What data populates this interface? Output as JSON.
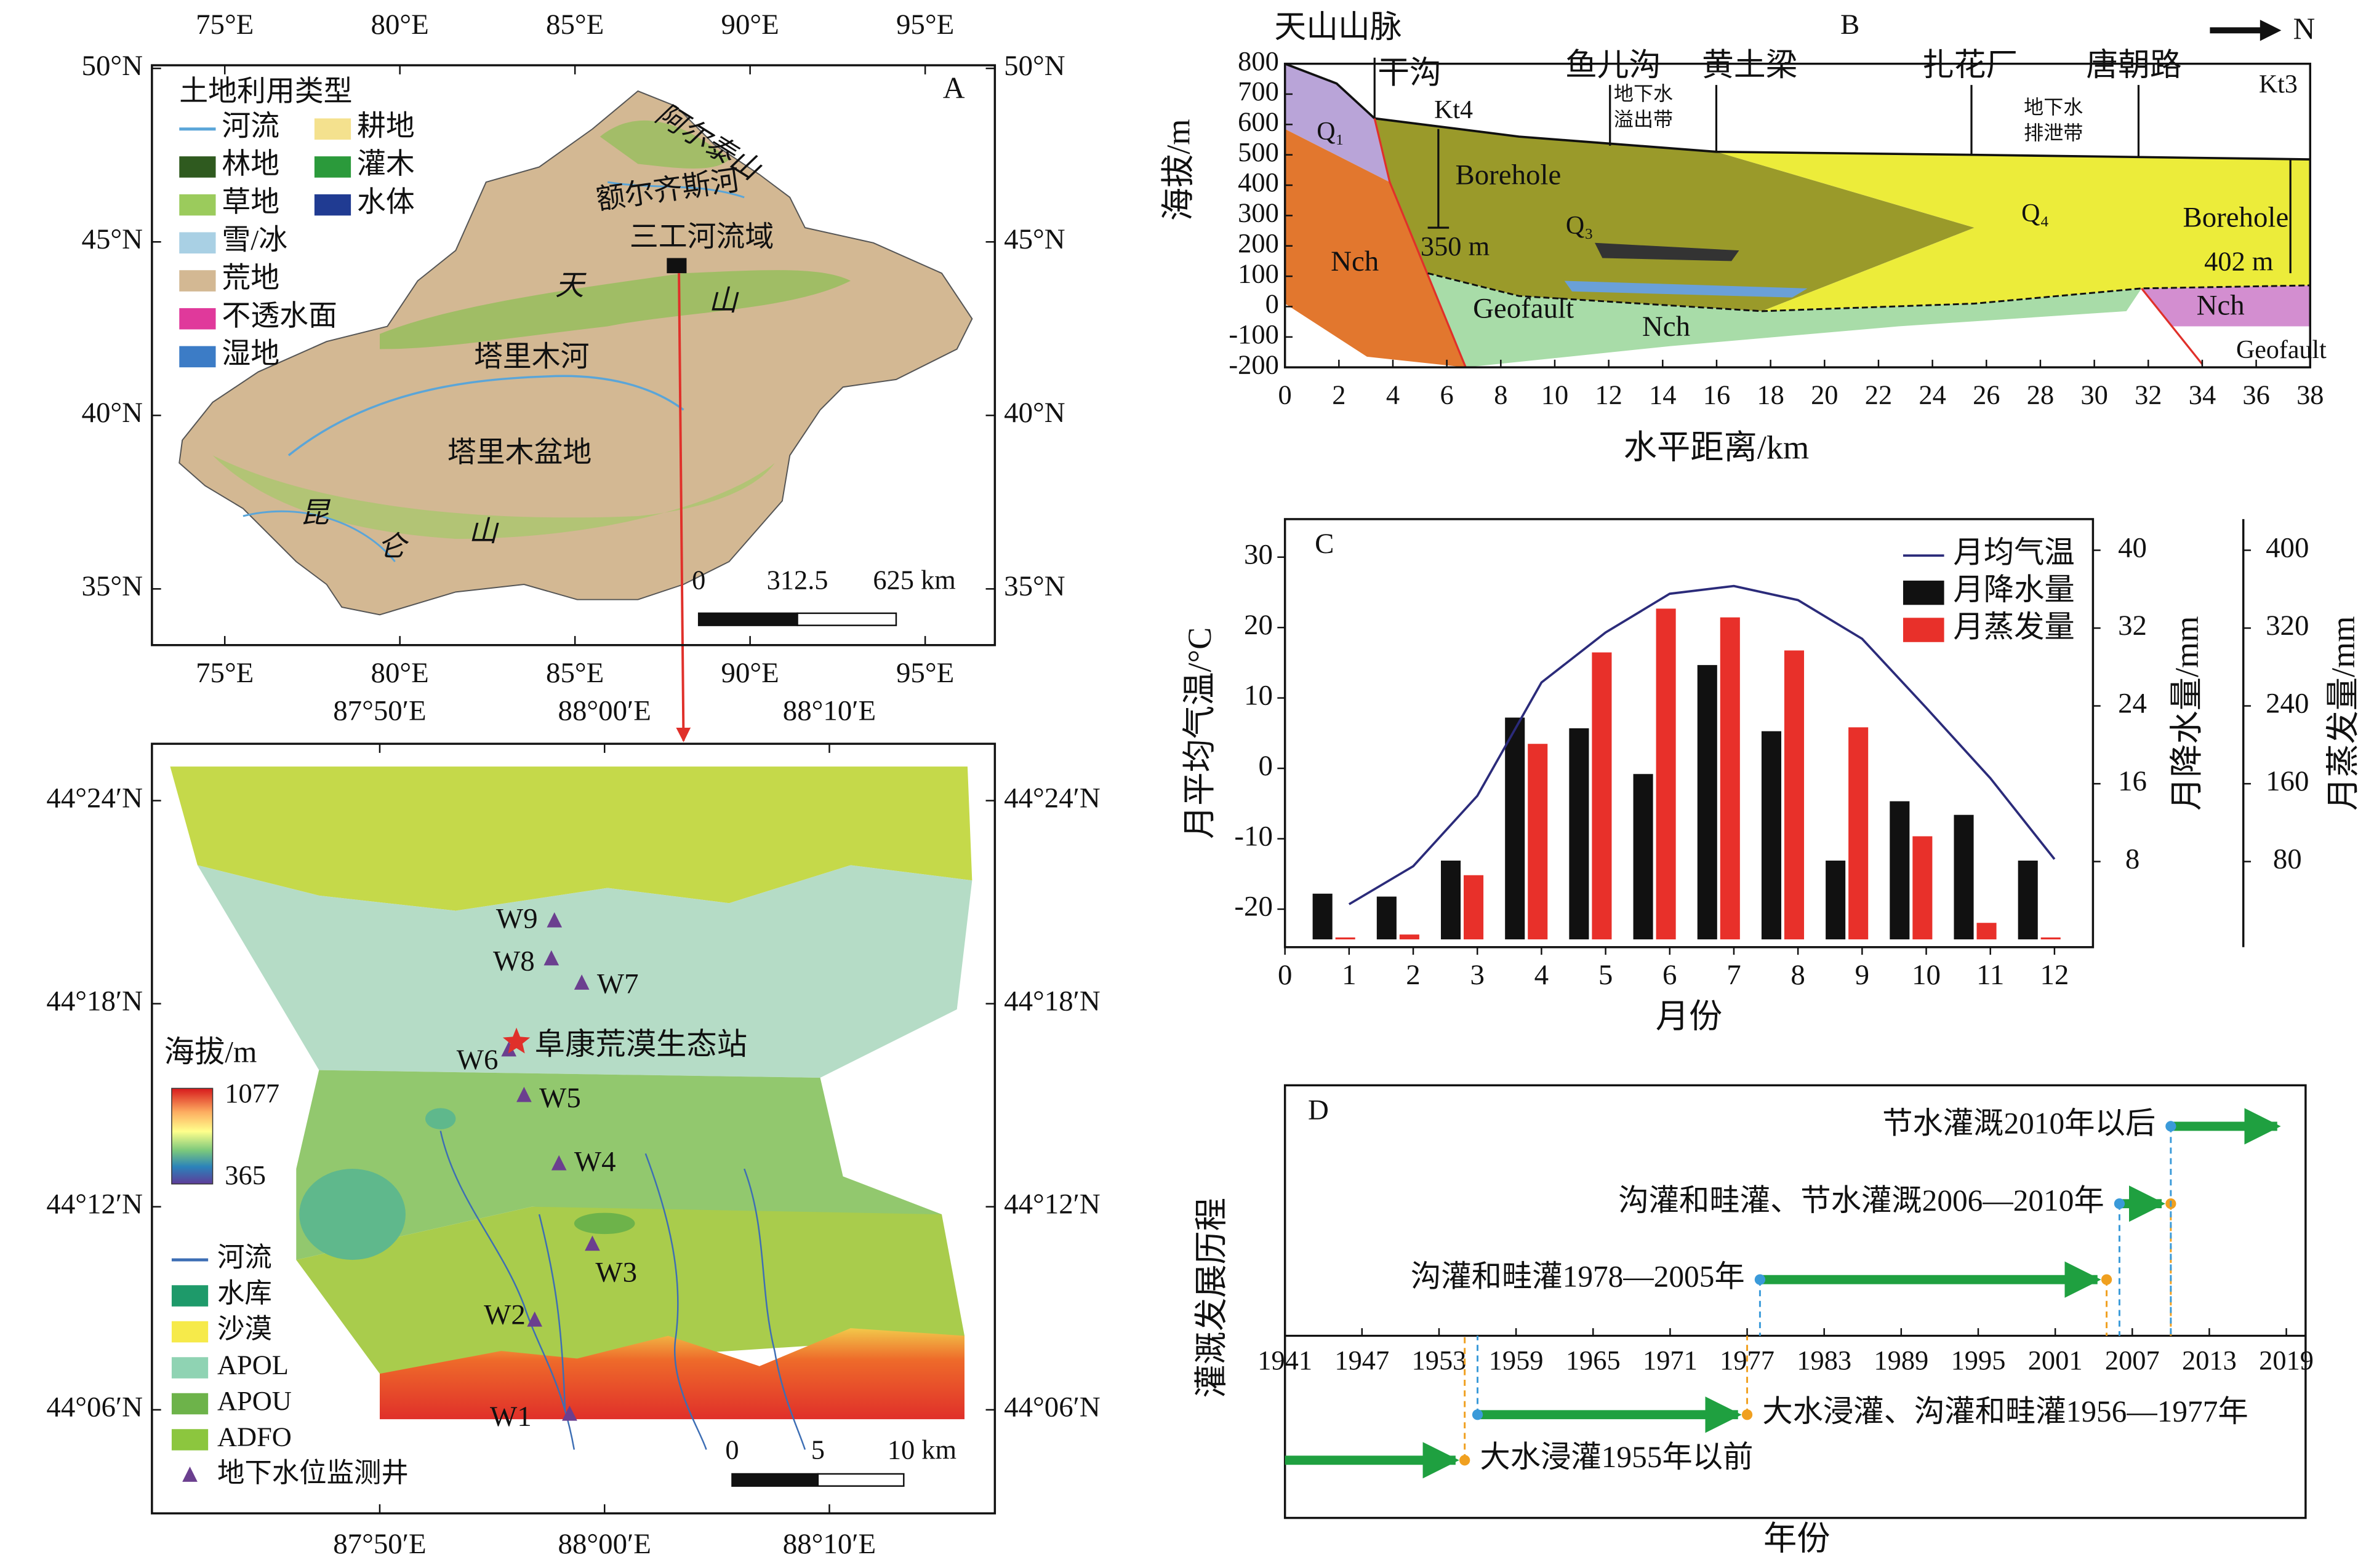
{
  "chart_data": [
    {
      "type": "map_overview",
      "panel": "A",
      "legend_title": "土地利用类型",
      "legend": [
        {
          "name": "河流",
          "color": "#5aa5d8"
        },
        {
          "name": "林地",
          "color": "#2f5a1f"
        },
        {
          "name": "草地",
          "color": "#9bcb5c"
        },
        {
          "name": "雪/冰",
          "color": "#a9d0e4"
        },
        {
          "name": "荒地",
          "color": "#d3b893"
        },
        {
          "name": "不透水面",
          "color": "#e0399b"
        },
        {
          "name": "湿地",
          "color": "#3c7cc6"
        },
        {
          "name": "耕地",
          "color": "#f4e18e"
        },
        {
          "name": "灌木",
          "color": "#2b9a3b"
        },
        {
          "name": "水体",
          "color": "#203b92"
        }
      ],
      "labels": [
        "阿尔泰山",
        "额尔齐斯河",
        "三工河流域",
        "天",
        "山",
        "塔里木河",
        "塔里木盆地",
        "昆",
        "仑",
        "山"
      ],
      "xlim": [
        72.92,
        96.99
      ],
      "ylim": [
        33.38,
        50.09
      ],
      "xticks": [
        {
          "value": 75,
          "label": "75°E"
        },
        {
          "value": 80,
          "label": "80°E"
        },
        {
          "value": 85,
          "label": "85°E"
        },
        {
          "value": 90,
          "label": "90°E"
        },
        {
          "value": 95,
          "label": "95°E"
        }
      ],
      "yticks": [
        {
          "value": 35,
          "label": "35°N"
        },
        {
          "value": 40,
          "label": "40°N"
        },
        {
          "value": 45,
          "label": "45°N"
        },
        {
          "value": 50,
          "label": "50°N"
        }
      ],
      "scale_bar": [
        0,
        312.5,
        {
          "value": 625,
          "label": "625 km"
        }
      ]
    },
    {
      "type": "map_study",
      "legend": [
        {
          "name": "河流",
          "color": "#3d6eb4"
        },
        {
          "name": "水库",
          "color": "#1e9a6a"
        },
        {
          "name": "沙漠",
          "color": "#f6ea4a"
        },
        {
          "name": "APOL",
          "color": "#8fd3b3"
        },
        {
          "name": "APOU",
          "color": "#6db34a"
        },
        {
          "name": "ADFO",
          "color": "#8cc63e"
        },
        {
          "name": "地下水位监测井",
          "color": "#6b3f8f"
        }
      ],
      "wells": [
        "W1",
        "W2",
        "W3",
        "W4",
        "W5",
        "W6",
        "W7",
        "W8",
        "W9"
      ],
      "station": "阜康荒漠生态站",
      "colorbar": {
        "title": "海拔/m",
        "ticks": [
          365,
          1077
        ]
      },
      "xlim": [
        87.6644,
        88.2894
      ],
      "ylim": [
        44.049,
        44.428
      ],
      "xticks": [
        {
          "value": 87.8333,
          "label": "87°50′E"
        },
        {
          "value": 88.0,
          "label": "88°00′E"
        },
        {
          "value": 88.1667,
          "label": "88°10′E"
        }
      ],
      "yticks": [
        {
          "value": 44.1,
          "label": "44°06′N"
        },
        {
          "value": 44.2,
          "label": "44°12′N"
        },
        {
          "value": 44.3,
          "label": "44°18′N"
        },
        {
          "value": 44.4,
          "label": "44°24′N"
        }
      ],
      "scale_bar": [
        0,
        5,
        {
          "value": 10,
          "label": "10 km"
        }
      ]
    },
    {
      "type": "section",
      "panel": "B",
      "north": "N",
      "xlabel": "水平距离/km",
      "ylabel": "海拔/m",
      "labels": [
        "天山山脉",
        "干沟",
        "Kt4",
        "鱼儿沟",
        "黄土梁",
        "地下水",
        "溢出带",
        "扎花厂",
        "唐朝路",
        "地下水",
        "排泄带",
        "Kt3",
        "Q₁",
        "Borehole",
        "Q₃",
        "350 m",
        "Nch",
        "Q₄",
        "Borehole",
        "402 m",
        "Nch",
        "Geofault",
        "Nch",
        "Geofault"
      ],
      "xlim": [
        0,
        38
      ],
      "ylim": [
        -200,
        800
      ],
      "xticks": [
        0,
        2,
        4,
        6,
        8,
        10,
        12,
        14,
        16,
        18,
        20,
        22,
        24,
        26,
        28,
        30,
        32,
        34,
        36,
        38
      ],
      "yticks": [
        -200,
        -100,
        0,
        100,
        200,
        300,
        400,
        500,
        600,
        700,
        800
      ]
    },
    {
      "type": "combo",
      "panel": "C",
      "xlabel": "月份",
      "ylabel": "月平均气温/°C",
      "y2label": "月降水量/mm",
      "y3label": "月蒸发量/mm",
      "x": [
        1,
        2,
        3,
        4,
        5,
        6,
        7,
        8,
        9,
        10,
        11,
        12
      ],
      "xlim": [
        0,
        12.6
      ],
      "xticks": [
        0,
        1,
        2,
        3,
        4,
        5,
        6,
        7,
        8,
        9,
        10,
        11,
        12
      ],
      "ylim": [
        -25.4,
        35.4
      ],
      "yticks": [
        -20,
        -10,
        0,
        10,
        20,
        30
      ],
      "y2lim": [
        -0.8,
        43.2
      ],
      "y2ticks": [
        8,
        16,
        24,
        32,
        40
      ],
      "y3lim": [
        -8,
        432
      ],
      "y3ticks": [
        80,
        160,
        240,
        320,
        400
      ],
      "series": [
        {
          "name": "月均气温",
          "color": "#2b2b7a",
          "type": "line",
          "values": [
            -19.3,
            -13.9,
            -3.9,
            12.2,
            19.3,
            24.8,
            25.9,
            23.9,
            18.4,
            8.6,
            -1.4,
            -12.9
          ]
        },
        {
          "name": "月降水量",
          "color": "#111111",
          "type": "bar",
          "axis": "y2",
          "values": [
            4.7,
            4.4,
            8.1,
            22.8,
            21.7,
            17.0,
            28.2,
            21.4,
            8.1,
            14.2,
            12.8,
            8.1
          ]
        },
        {
          "name": "月蒸发量",
          "color": "#e8302a",
          "type": "bar",
          "axis": "y3",
          "values": [
            2,
            5,
            66,
            201,
            295,
            340,
            331,
            297,
            218,
            106,
            17,
            2
          ]
        }
      ]
    },
    {
      "type": "timeline",
      "panel": "D",
      "xlabel": "年份",
      "ylabel": "灌溉发展历程",
      "color": "#1fa040",
      "xlim": [
        1941,
        2020.5
      ],
      "xticks": [
        1941,
        1947,
        1953,
        1959,
        1965,
        1971,
        1977,
        1983,
        1989,
        1995,
        2001,
        2007,
        2013,
        2019
      ],
      "items": [
        {
          "label": "大水浸灌1955年以前",
          "start": 1941,
          "end": 1955
        },
        {
          "label": "大水浸灌、沟灌和畦灌1956—1977年",
          "start": 1956,
          "end": 1977
        },
        {
          "label": "沟灌和畦灌1978—2005年",
          "start": 1978,
          "end": 2005
        },
        {
          "label": "沟灌和畦灌、节水灌溉2006—2010年",
          "start": 2006,
          "end": 2010
        },
        {
          "label": "节水灌溉2010年以后",
          "start": 2010,
          "end": 2019
        }
      ]
    }
  ]
}
